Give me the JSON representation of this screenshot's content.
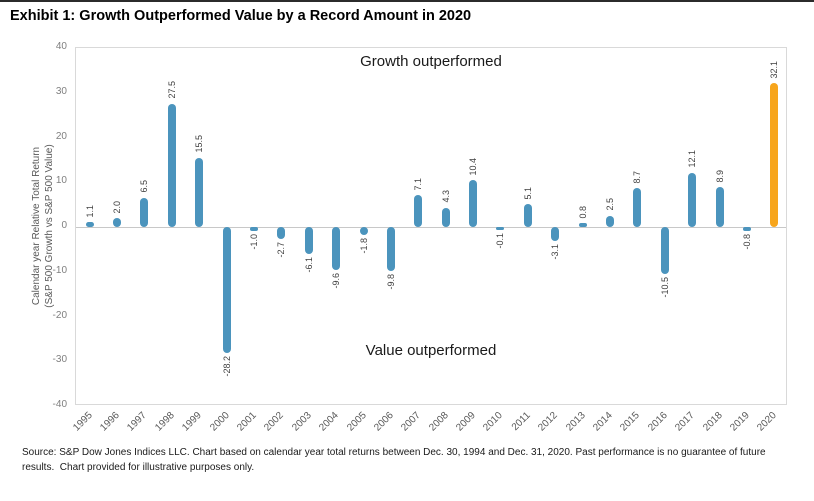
{
  "title": "Exhibit 1: Growth Outperformed Value by a Record Amount in 2020",
  "chart_data": {
    "type": "bar",
    "title": "Exhibit 1: Growth Outperformed Value by a Record Amount in 2020",
    "xlabel": "",
    "ylabel": "Calendar year Relative Total Return",
    "ylabel_sub": "(S&P 500 Growth vs S&P 500 Value)",
    "ylim": [
      -40,
      40
    ],
    "yticks": [
      40,
      30,
      20,
      10,
      0,
      -10,
      -20,
      -30,
      -40
    ],
    "categories": [
      "1995",
      "1996",
      "1997",
      "1998",
      "1999",
      "2000",
      "2001",
      "2002",
      "2003",
      "2004",
      "2005",
      "2006",
      "2007",
      "2008",
      "2009",
      "2010",
      "2011",
      "2012",
      "2013",
      "2014",
      "2015",
      "2016",
      "2017",
      "2018",
      "2019",
      "2020"
    ],
    "values": [
      1.1,
      2.0,
      6.5,
      27.5,
      15.5,
      -28.2,
      -1.0,
      -2.7,
      -6.1,
      -9.6,
      -1.8,
      -9.8,
      7.1,
      4.3,
      10.4,
      -0.1,
      5.1,
      -3.1,
      0.8,
      2.5,
      8.7,
      -10.5,
      12.1,
      8.9,
      -0.8,
      32.1
    ],
    "value_label_format": "0.0",
    "highlight_category": "2020",
    "colors": {
      "bar": "#4B94BD",
      "highlight_bar": "#F7A51C",
      "zero_line": "#c8c8c8",
      "plot_border": "#d9d9d9"
    },
    "annotations": {
      "top": "Growth outperformed",
      "bottom": "Value outperformed"
    },
    "legend": "none",
    "grid": false
  },
  "footer": {
    "source_note": "Source: S&P Dow Jones Indices LLC. Chart based on calendar year total returns between Dec. 30, 1994 and Dec. 31, 2020. Past performance is no guarantee of future results.  Chart provided for illustrative purposes only."
  }
}
